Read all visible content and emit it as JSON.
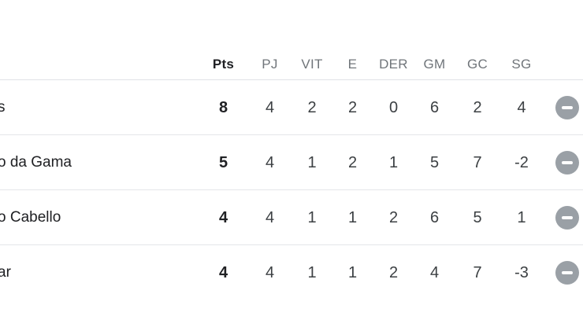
{
  "table": {
    "headers": {
      "team": "",
      "pts": "Pts",
      "pj": "PJ",
      "vit": "VIT",
      "e": "E",
      "der": "DER",
      "gm": "GM",
      "gc": "GC",
      "sg": "SG"
    },
    "rows": [
      {
        "team": "s",
        "pts": "8",
        "pj": "4",
        "vit": "2",
        "e": "2",
        "der": "0",
        "gm": "6",
        "gc": "2",
        "sg": "4"
      },
      {
        "team": "o da Gama",
        "pts": "5",
        "pj": "4",
        "vit": "1",
        "e": "2",
        "der": "1",
        "gm": "5",
        "gc": "7",
        "sg": "-2"
      },
      {
        "team": "o Cabello",
        "pts": "4",
        "pj": "4",
        "vit": "1",
        "e": "1",
        "der": "2",
        "gm": "6",
        "gc": "5",
        "sg": "1"
      },
      {
        "team": "ar",
        "pts": "4",
        "pj": "4",
        "vit": "1",
        "e": "1",
        "der": "2",
        "gm": "4",
        "gc": "7",
        "sg": "-3"
      }
    ]
  },
  "colors": {
    "header_muted": "#70757a",
    "text_dark": "#202124",
    "number_text": "#3c4043",
    "divider": "#e0e2e6",
    "minus_button_bg": "#9aa0a6",
    "minus_glyph": "#ffffff"
  }
}
